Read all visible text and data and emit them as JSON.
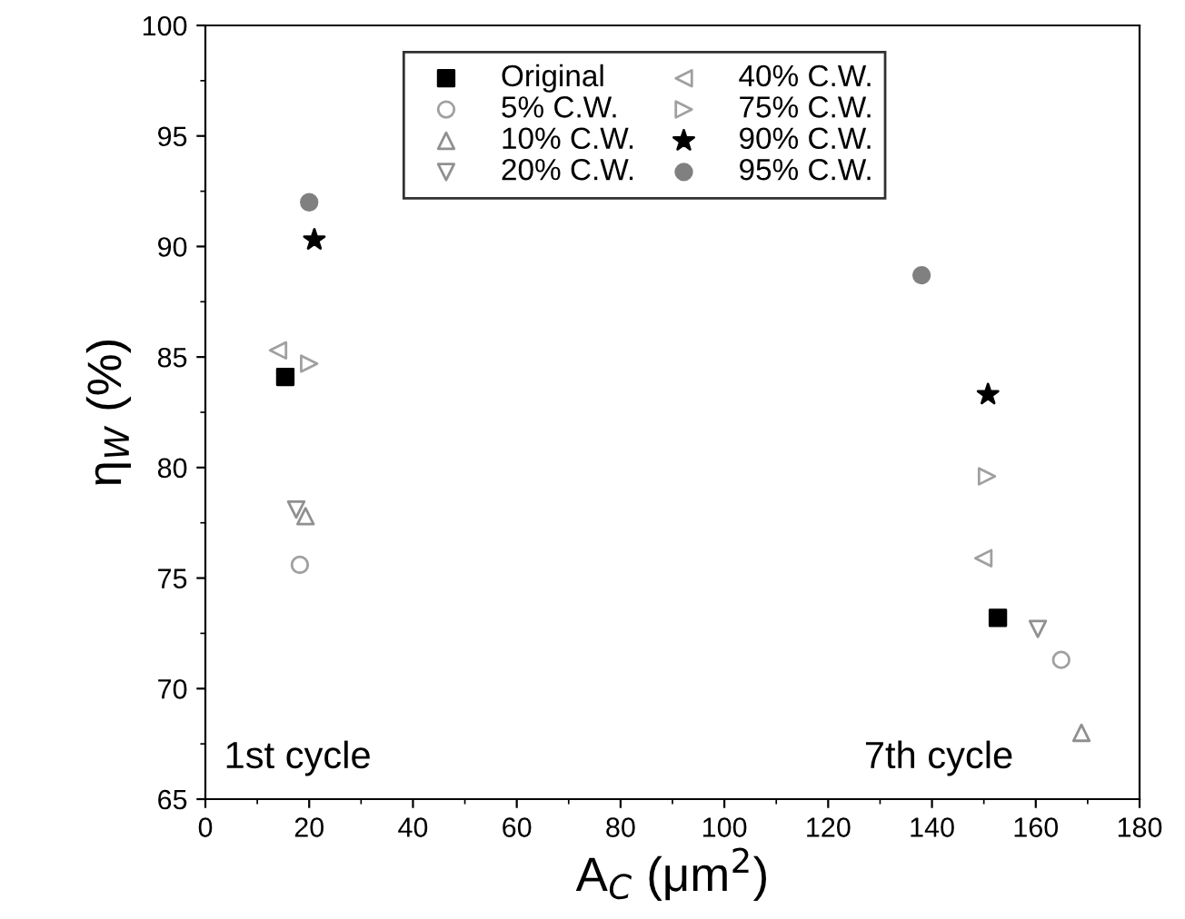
{
  "chart_data": {
    "type": "scatter",
    "xlabel": "A$_{C}$ (μm$^{2}$)",
    "ylabel": "η$_{W}$ (%)",
    "xlim": [
      0,
      180
    ],
    "xticks": [
      0,
      20,
      40,
      60,
      80,
      100,
      120,
      140,
      160,
      180
    ],
    "ylim": [
      65,
      100
    ],
    "yticks": [
      65,
      70,
      75,
      80,
      85,
      90,
      95,
      100
    ],
    "grid": false,
    "legend": "top",
    "annotations": [
      "1st cycle",
      "7th cycle"
    ],
    "series": [
      {
        "name": "Original",
        "color": "#000000",
        "marker": "square",
        "x": [
          15.4,
          152.7
        ],
        "values": [
          84.1,
          73.2
        ]
      },
      {
        "name": "5% C.W.",
        "color": "#a0a0a0",
        "marker": "circle",
        "x": [
          18.2,
          164.9
        ],
        "values": [
          75.6,
          71.3
        ]
      },
      {
        "name": "10% C.W.",
        "color": "#909090",
        "marker": "triangle",
        "x": [
          19.3,
          168.8
        ],
        "values": [
          77.8,
          68.0
        ]
      },
      {
        "name": "20% C.W.",
        "color": "#909090",
        "marker": "triangle_down",
        "x": [
          17.5,
          160.4
        ],
        "values": [
          78.1,
          72.7
        ]
      },
      {
        "name": "40% C.W.",
        "color": "#a0a0a0",
        "marker": "triangle_left",
        "x": [
          14.0,
          149.9
        ],
        "values": [
          85.3,
          75.9
        ]
      },
      {
        "name": "75% C.W.",
        "color": "#a0a0a0",
        "marker": "triangle_right",
        "x": [
          20.0,
          150.6
        ],
        "values": [
          84.7,
          79.6
        ]
      },
      {
        "name": "90% C.W.",
        "color": "#000000",
        "marker": "star",
        "x": [
          21.0,
          150.8
        ],
        "values": [
          90.3,
          83.3
        ]
      },
      {
        "name": "95% C.W.",
        "color": "#808080",
        "marker": "circle",
        "x": [
          20.0,
          138.0
        ],
        "values": [
          92.0,
          88.7
        ]
      }
    ]
  }
}
